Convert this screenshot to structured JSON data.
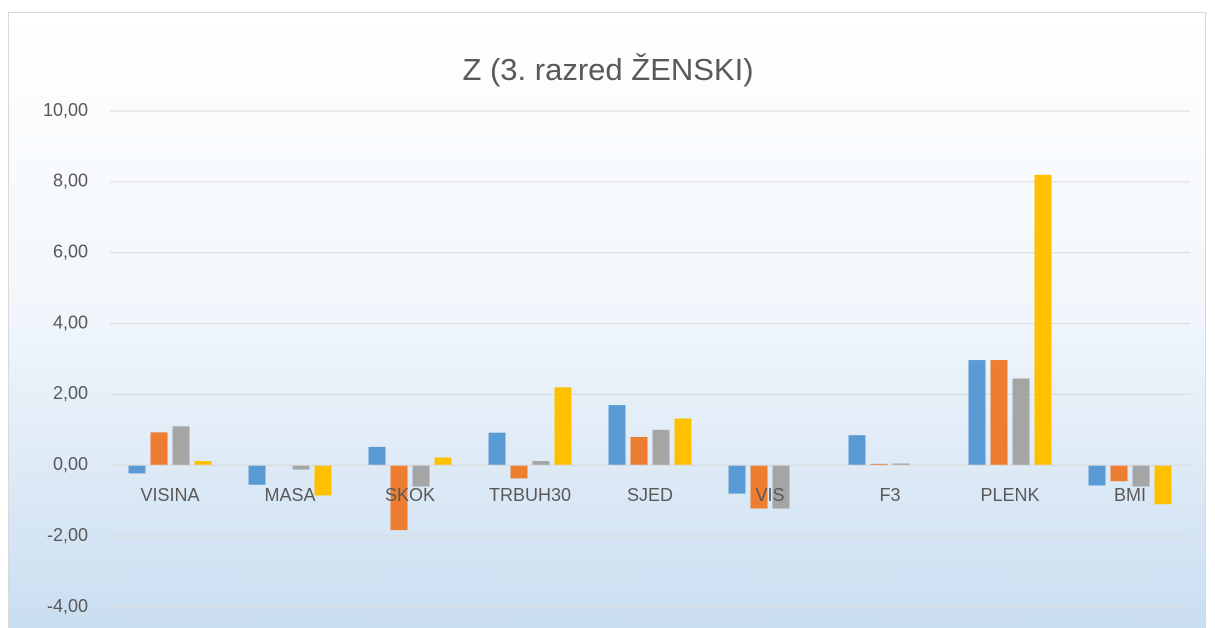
{
  "chart_data": {
    "type": "bar",
    "title": "Z (3. razred ŽENSKI)",
    "categories": [
      "VISINA",
      "MASA",
      "SKOK",
      "TRBUH30",
      "SJED",
      "VIS",
      "F3",
      "PLENK",
      "BMI"
    ],
    "series": [
      {
        "color": "#5b9bd5",
        "values": [
          -0.23,
          -0.55,
          0.52,
          0.92,
          1.7,
          -0.8,
          0.85,
          2.97,
          -0.57
        ]
      },
      {
        "color": "#ed7d31",
        "values": [
          0.93,
          0.0,
          -1.83,
          -0.37,
          0.8,
          -1.22,
          0.04,
          2.97,
          -0.45
        ]
      },
      {
        "color": "#a5a5a5",
        "values": [
          1.1,
          -0.12,
          -0.6,
          0.12,
          1.0,
          -1.22,
          0.05,
          2.45,
          -0.6
        ]
      },
      {
        "color": "#ffc000",
        "values": [
          0.12,
          -0.85,
          0.22,
          2.2,
          1.32,
          0.0,
          0.0,
          8.2,
          -1.1
        ]
      }
    ],
    "ylim": [
      -4,
      10
    ],
    "yticks": [
      {
        "value": -4,
        "label": "-4,00"
      },
      {
        "value": -2,
        "label": "-2,00"
      },
      {
        "value": 0,
        "label": "0,00"
      },
      {
        "value": 2,
        "label": "2,00"
      },
      {
        "value": 4,
        "label": "4,00"
      },
      {
        "value": 6,
        "label": "6,00"
      },
      {
        "value": 8,
        "label": "8,00"
      },
      {
        "value": 10,
        "label": "10,00"
      }
    ],
    "grid": true
  }
}
